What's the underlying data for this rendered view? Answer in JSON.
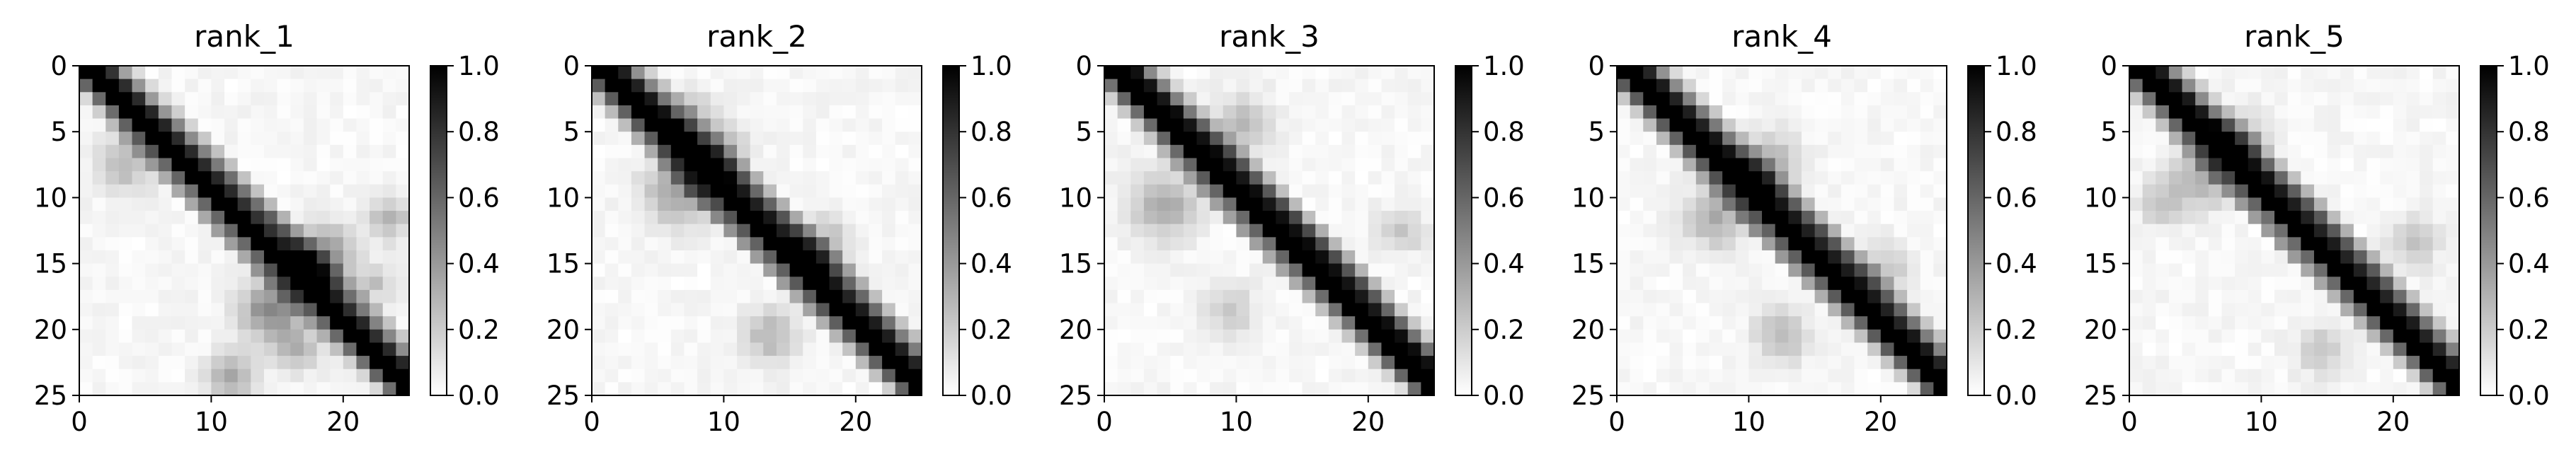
{
  "chart_data": [
    {
      "type": "heatmap",
      "title": "rank_1",
      "n": 25,
      "xlim": [
        0,
        25
      ],
      "ylim": [
        25,
        0
      ],
      "xticks": [
        0,
        10,
        20
      ],
      "yticks": [
        0,
        5,
        10,
        15,
        20,
        25
      ],
      "colorbar": {
        "min": 0.0,
        "max": 1.0,
        "ticks": [
          "0.0",
          "0.2",
          "0.4",
          "0.6",
          "0.8",
          "1.0"
        ]
      },
      "colormap": "gray_r",
      "band": {
        "offsets": [
          [
            -2,
            0.1
          ],
          [
            -1,
            0.55
          ],
          [
            0,
            1.0
          ],
          [
            1,
            1.0
          ],
          [
            2,
            0.8
          ],
          [
            3,
            0.35
          ],
          [
            4,
            0.12
          ]
        ]
      },
      "blobs": [
        [
          14,
          18,
          0.45,
          1.6
        ],
        [
          18,
          14,
          0.45,
          1.6
        ],
        [
          23,
          11,
          0.35,
          1.2
        ],
        [
          21,
          16,
          0.25,
          1.2
        ],
        [
          11,
          23,
          0.25,
          1.2
        ],
        [
          7,
          3,
          0.25,
          1.5
        ],
        [
          16,
          22,
          0.2,
          1.0
        ]
      ]
    },
    {
      "type": "heatmap",
      "title": "rank_2",
      "n": 25,
      "xlim": [
        0,
        25
      ],
      "ylim": [
        25,
        0
      ],
      "xticks": [
        0,
        10,
        20
      ],
      "yticks": [
        0,
        5,
        10,
        15,
        20,
        25
      ],
      "colorbar": {
        "min": 0.0,
        "max": 1.0,
        "ticks": [
          "0.0",
          "0.2",
          "0.4",
          "0.6",
          "0.8",
          "1.0"
        ]
      },
      "colormap": "gray_r",
      "band": {
        "offsets": [
          [
            -2,
            0.15
          ],
          [
            -1,
            0.6
          ],
          [
            0,
            1.0
          ],
          [
            1,
            1.0
          ],
          [
            2,
            0.85
          ],
          [
            3,
            0.4
          ],
          [
            4,
            0.15
          ]
        ]
      },
      "blobs": [
        [
          9,
          6,
          0.35,
          1.8
        ],
        [
          6,
          9,
          0.3,
          1.5
        ],
        [
          13,
          17,
          0.25,
          1.5
        ],
        [
          20,
          13,
          0.25,
          1.5
        ],
        [
          3,
          7,
          0.2,
          1.2
        ]
      ]
    },
    {
      "type": "heatmap",
      "title": "rank_3",
      "n": 25,
      "xlim": [
        0,
        25
      ],
      "ylim": [
        25,
        0
      ],
      "xticks": [
        0,
        10,
        20
      ],
      "yticks": [
        0,
        5,
        10,
        15,
        20,
        25
      ],
      "colorbar": {
        "min": 0.0,
        "max": 1.0,
        "ticks": [
          "0.0",
          "0.2",
          "0.4",
          "0.6",
          "0.8",
          "1.0"
        ]
      },
      "colormap": "gray_r",
      "band": {
        "offsets": [
          [
            -2,
            0.1
          ],
          [
            -1,
            0.55
          ],
          [
            0,
            1.0
          ],
          [
            1,
            1.0
          ],
          [
            2,
            0.9
          ],
          [
            3,
            0.45
          ],
          [
            4,
            0.12
          ]
        ]
      },
      "blobs": [
        [
          10,
          4,
          0.3,
          1.8
        ],
        [
          4,
          10,
          0.25,
          1.5
        ],
        [
          12,
          22,
          0.2,
          1.2
        ],
        [
          18,
          9,
          0.2,
          1.3
        ]
      ]
    },
    {
      "type": "heatmap",
      "title": "rank_4",
      "n": 25,
      "xlim": [
        0,
        25
      ],
      "ylim": [
        25,
        0
      ],
      "xticks": [
        0,
        10,
        20
      ],
      "yticks": [
        0,
        5,
        10,
        15,
        20,
        25
      ],
      "colorbar": {
        "min": 0.0,
        "max": 1.0,
        "ticks": [
          "0.0",
          "0.2",
          "0.4",
          "0.6",
          "0.8",
          "1.0"
        ]
      },
      "colormap": "gray_r",
      "band": {
        "offsets": [
          [
            -2,
            0.12
          ],
          [
            -1,
            0.6
          ],
          [
            0,
            1.0
          ],
          [
            1,
            1.0
          ],
          [
            2,
            0.85
          ],
          [
            3,
            0.4
          ],
          [
            4,
            0.12
          ]
        ]
      },
      "blobs": [
        [
          7,
          11,
          0.3,
          1.6
        ],
        [
          11,
          7,
          0.3,
          1.6
        ],
        [
          20,
          12,
          0.25,
          1.4
        ],
        [
          15,
          20,
          0.2,
          1.3
        ]
      ]
    },
    {
      "type": "heatmap",
      "title": "rank_5",
      "n": 25,
      "xlim": [
        0,
        25
      ],
      "ylim": [
        25,
        0
      ],
      "xticks": [
        0,
        10,
        20
      ],
      "yticks": [
        0,
        5,
        10,
        15,
        20,
        25
      ],
      "colorbar": {
        "min": 0.0,
        "max": 1.0,
        "ticks": [
          "0.0",
          "0.2",
          "0.4",
          "0.6",
          "0.8",
          "1.0"
        ]
      },
      "colormap": "gray_r",
      "band": {
        "offsets": [
          [
            -2,
            0.12
          ],
          [
            -1,
            0.55
          ],
          [
            0,
            1.0
          ],
          [
            1,
            1.0
          ],
          [
            2,
            0.85
          ],
          [
            3,
            0.4
          ],
          [
            4,
            0.12
          ]
        ]
      },
      "blobs": [
        [
          8,
          5,
          0.3,
          1.6
        ],
        [
          5,
          8,
          0.25,
          1.4
        ],
        [
          13,
          21,
          0.2,
          1.3
        ],
        [
          21,
          14,
          0.2,
          1.3
        ],
        [
          10,
          2,
          0.2,
          1.2
        ]
      ]
    }
  ]
}
